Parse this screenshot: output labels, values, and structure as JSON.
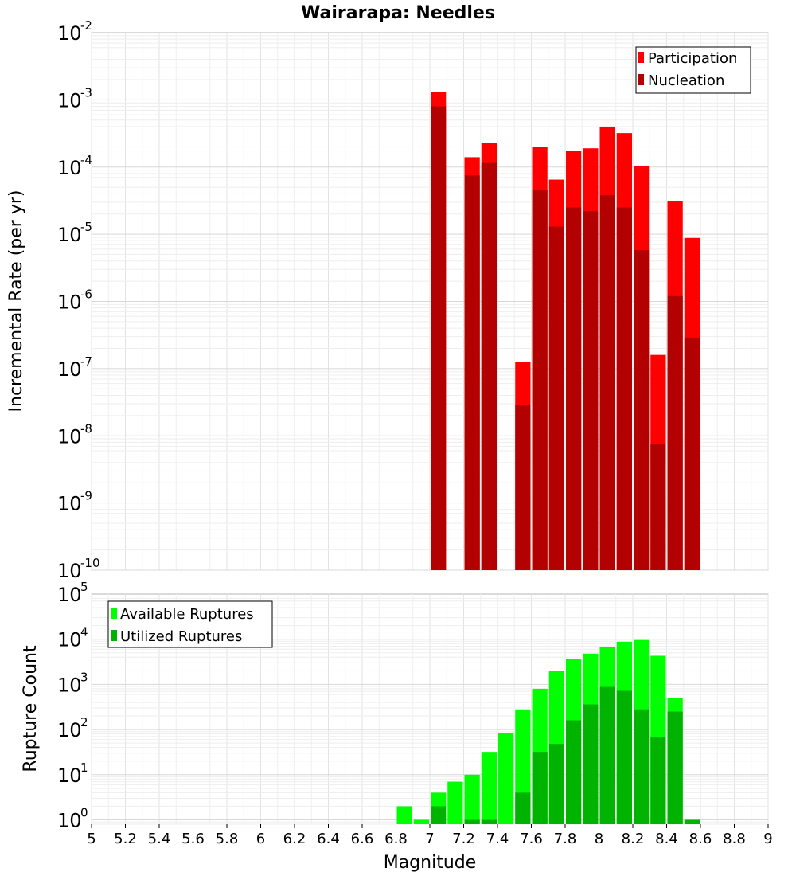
{
  "title": "Wairarapa: Needles",
  "x_axis": {
    "label": "Magnitude",
    "min": 5,
    "max": 9,
    "ticks": [
      "5",
      "5.2",
      "5.4",
      "5.6",
      "5.8",
      "6",
      "6.2",
      "6.4",
      "6.6",
      "6.8",
      "7",
      "7.2",
      "7.4",
      "7.6",
      "7.8",
      "8",
      "8.2",
      "8.4",
      "8.6",
      "8.8",
      "9"
    ]
  },
  "chart_data": [
    {
      "type": "bar",
      "title": "Wairarapa: Needles",
      "xlabel": "Magnitude",
      "ylabel": "Incremental Rate (per yr)",
      "y_scale": "log",
      "ylim": [
        1e-10,
        0.01
      ],
      "y_tick_exponents": [
        "-2",
        "-3",
        "-4",
        "-5",
        "-6",
        "-7",
        "-8",
        "-9",
        "-10"
      ],
      "legend_position": "top-right",
      "grid": true,
      "x": [
        7.05,
        7.25,
        7.35,
        7.55,
        7.65,
        7.75,
        7.85,
        7.95,
        8.05,
        8.15,
        8.25,
        8.35,
        8.45,
        8.55
      ],
      "series": [
        {
          "name": "Participation",
          "color": "#ff0000",
          "values": [
            0.0013,
            0.00014,
            0.00023,
            1.25e-07,
            0.0002,
            6.5e-05,
            0.000175,
            0.00019,
            0.0004,
            0.00032,
            0.000105,
            1.6e-07,
            3.1e-05,
            8.8e-06
          ]
        },
        {
          "name": "Nucleation",
          "color": "#b30000",
          "values": [
            0.0008,
            7.5e-05,
            0.000115,
            2.9e-08,
            4.6e-05,
            1.3e-05,
            2.5e-05,
            2.2e-05,
            3.8e-05,
            2.5e-05,
            5.8e-06,
            7.5e-09,
            1.2e-06,
            2.9e-07
          ]
        }
      ]
    },
    {
      "type": "bar",
      "ylabel": "Rupture Count",
      "xlabel": "Magnitude",
      "y_scale": "log",
      "ylim": [
        0.8,
        100000.0
      ],
      "y_tick_exponents": [
        "0",
        "1",
        "2",
        "3",
        "4",
        "5"
      ],
      "legend_position": "top-left",
      "grid": true,
      "series": [
        {
          "name": "Available Ruptures",
          "color": "#00ff00",
          "x": [
            6.85,
            6.95,
            7.05,
            7.15,
            7.25,
            7.35,
            7.45,
            7.55,
            7.65,
            7.75,
            7.85,
            7.95,
            8.05,
            8.15,
            8.25,
            8.35,
            8.45
          ],
          "values": [
            2,
            1,
            4,
            7,
            10,
            32,
            85,
            280,
            800,
            2000,
            3600,
            4800,
            6800,
            8800,
            9600,
            4300,
            500
          ]
        },
        {
          "name": "Utilized Ruptures",
          "color": "#00b300",
          "x": [
            7.05,
            7.25,
            7.35,
            7.55,
            7.65,
            7.75,
            7.85,
            7.95,
            8.05,
            8.15,
            8.25,
            8.35,
            8.45,
            8.55
          ],
          "values": [
            2,
            1,
            1,
            4,
            32,
            48,
            160,
            360,
            880,
            720,
            280,
            68,
            250,
            1
          ]
        }
      ]
    }
  ]
}
